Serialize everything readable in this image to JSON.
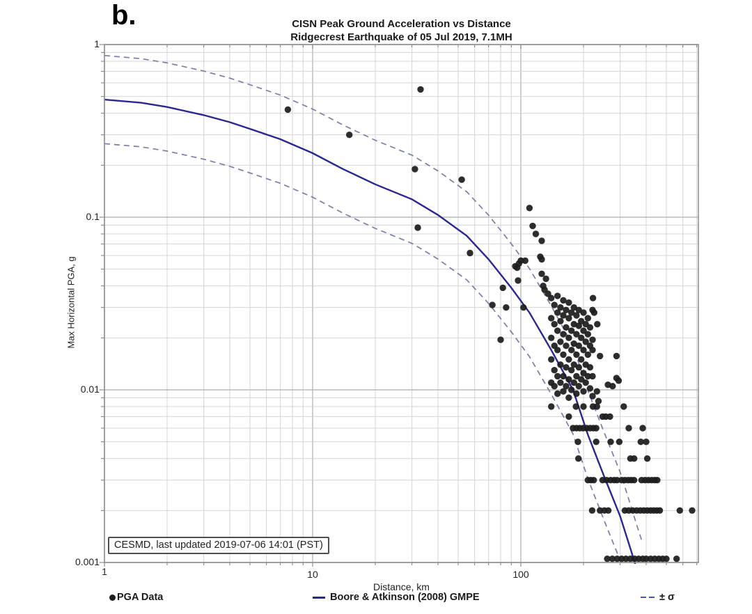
{
  "panel_label": "b.",
  "title": {
    "line1": "CISN Peak Ground Acceleration vs Distance",
    "line2": "Ridgecrest Earthquake of 05 Jul 2019, 7.1MH"
  },
  "annotation": {
    "text": "CESMD, last updated 2019-07-06 14:01 (PST)"
  },
  "legend": {
    "items": [
      {
        "marker": "filled-dot",
        "label": "PGA Data"
      },
      {
        "marker": "solid-line",
        "label": "Boore & Atkinson (2008) GMPE"
      },
      {
        "marker": "dashed-line",
        "label": "± σ"
      }
    ]
  },
  "colors": {
    "background": "#ffffff",
    "point": "#1d1d1d",
    "gmpe_line": "#2b2791",
    "sigma_line": "#7a7ea8",
    "grid_minor": "#d4d4d4",
    "grid_major": "#b9b9b9",
    "plot_border": "#8f8f8f",
    "tick": "#777777"
  },
  "chart_data": {
    "type": "scatter",
    "title": "CISN Peak Ground Acceleration vs Distance — Ridgecrest Earthquake of 05 Jul 2019, 7.1MH",
    "xlabel": "Distance, km",
    "ylabel": "Max Horizontal PGA, g",
    "xscale": "log",
    "yscale": "log",
    "xlim": [
      1,
      713
    ],
    "ylim": [
      0.001,
      1
    ],
    "x_tick_labels": [
      "1",
      "10",
      "100"
    ],
    "y_tick_labels": [
      "1",
      "0.1",
      "0.01",
      "0.001"
    ],
    "grid": true,
    "legend_position": "bottom",
    "sigma_factor": 1.8,
    "gmpe_curve": [
      [
        1,
        0.48
      ],
      [
        1.5,
        0.46
      ],
      [
        2,
        0.435
      ],
      [
        3,
        0.39
      ],
      [
        4,
        0.355
      ],
      [
        5,
        0.325
      ],
      [
        7,
        0.283
      ],
      [
        10,
        0.235
      ],
      [
        14,
        0.19
      ],
      [
        20,
        0.155
      ],
      [
        30,
        0.127
      ],
      [
        40,
        0.103
      ],
      [
        55,
        0.078
      ],
      [
        70,
        0.057
      ],
      [
        90,
        0.039
      ],
      [
        110,
        0.028
      ],
      [
        140,
        0.017
      ],
      [
        178,
        0.01
      ],
      [
        210,
        0.0055
      ],
      [
        250,
        0.0032
      ],
      [
        300,
        0.00185
      ],
      [
        340,
        0.00115
      ],
      [
        360,
        0.00092
      ],
      [
        380,
        0.00075
      ]
    ],
    "pga_points": [
      [
        7.6,
        0.42
      ],
      [
        15,
        0.3
      ],
      [
        33,
        0.55
      ],
      [
        31,
        0.19
      ],
      [
        52,
        0.165
      ],
      [
        32,
        0.087
      ],
      [
        57,
        0.062
      ],
      [
        73,
        0.031
      ],
      [
        80,
        0.0195
      ],
      [
        82,
        0.039
      ],
      [
        85,
        0.03
      ],
      [
        94,
        0.052
      ],
      [
        96,
        0.051
      ],
      [
        97,
        0.043
      ],
      [
        98,
        0.054
      ],
      [
        100,
        0.056
      ],
      [
        103,
        0.03
      ],
      [
        105,
        0.056
      ],
      [
        110,
        0.113
      ],
      [
        114,
        0.089
      ],
      [
        118,
        0.08
      ],
      [
        126,
        0.073
      ],
      [
        124,
        0.059
      ],
      [
        126,
        0.057
      ],
      [
        126,
        0.047
      ],
      [
        128,
        0.04
      ],
      [
        130,
        0.038
      ],
      [
        132,
        0.044
      ],
      [
        135,
        0.036
      ],
      [
        222,
        0.034
      ],
      [
        221,
        0.029
      ],
      [
        225,
        0.028
      ],
      [
        233,
        0.024
      ],
      [
        221,
        0.0195
      ],
      [
        221,
        0.017
      ],
      [
        240,
        0.0157
      ],
      [
        288,
        0.0157
      ],
      [
        221,
        0.012
      ],
      [
        288,
        0.0117
      ],
      [
        295,
        0.0113
      ],
      [
        262,
        0.0107
      ],
      [
        276,
        0.0105
      ],
      [
        232,
        0.0098
      ],
      [
        221,
        0.0092
      ],
      [
        236,
        0.0086
      ],
      [
        140,
        0.034
      ],
      [
        140,
        0.026
      ],
      [
        140,
        0.02
      ],
      [
        140,
        0.015
      ],
      [
        140,
        0.011
      ],
      [
        145,
        0.031
      ],
      [
        145,
        0.024
      ],
      [
        145,
        0.018
      ],
      [
        145,
        0.013
      ],
      [
        145,
        0.0105
      ],
      [
        150,
        0.035
      ],
      [
        150,
        0.028
      ],
      [
        150,
        0.022
      ],
      [
        150,
        0.017
      ],
      [
        150,
        0.012
      ],
      [
        150,
        0.0095
      ],
      [
        155,
        0.03
      ],
      [
        155,
        0.025
      ],
      [
        155,
        0.019
      ],
      [
        155,
        0.014
      ],
      [
        155,
        0.011
      ],
      [
        160,
        0.033
      ],
      [
        160,
        0.027
      ],
      [
        160,
        0.021
      ],
      [
        160,
        0.016
      ],
      [
        160,
        0.012
      ],
      [
        160,
        0.0098
      ],
      [
        165,
        0.029
      ],
      [
        165,
        0.023
      ],
      [
        165,
        0.018
      ],
      [
        165,
        0.0135
      ],
      [
        165,
        0.0105
      ],
      [
        170,
        0.032
      ],
      [
        170,
        0.026
      ],
      [
        170,
        0.02
      ],
      [
        170,
        0.015
      ],
      [
        170,
        0.0115
      ],
      [
        170,
        0.009
      ],
      [
        175,
        0.028
      ],
      [
        175,
        0.022
      ],
      [
        175,
        0.017
      ],
      [
        175,
        0.013
      ],
      [
        175,
        0.01
      ],
      [
        180,
        0.03
      ],
      [
        180,
        0.024
      ],
      [
        180,
        0.0185
      ],
      [
        180,
        0.014
      ],
      [
        180,
        0.011
      ],
      [
        185,
        0.027
      ],
      [
        185,
        0.021
      ],
      [
        185,
        0.016
      ],
      [
        185,
        0.012
      ],
      [
        185,
        0.0095
      ],
      [
        190,
        0.029
      ],
      [
        190,
        0.0235
      ],
      [
        190,
        0.018
      ],
      [
        190,
        0.0135
      ],
      [
        190,
        0.0105
      ],
      [
        195,
        0.025
      ],
      [
        195,
        0.02
      ],
      [
        195,
        0.015
      ],
      [
        195,
        0.0115
      ],
      [
        200,
        0.028
      ],
      [
        200,
        0.022
      ],
      [
        200,
        0.017
      ],
      [
        200,
        0.0125
      ],
      [
        200,
        0.0098
      ],
      [
        205,
        0.024
      ],
      [
        205,
        0.019
      ],
      [
        205,
        0.014
      ],
      [
        205,
        0.011
      ],
      [
        210,
        0.026
      ],
      [
        210,
        0.021
      ],
      [
        210,
        0.016
      ],
      [
        210,
        0.012
      ],
      [
        215,
        0.023
      ],
      [
        215,
        0.018
      ],
      [
        215,
        0.0135
      ],
      [
        215,
        0.0102
      ],
      [
        140,
        0.008
      ],
      [
        184,
        0.008
      ],
      [
        200,
        0.008
      ],
      [
        222,
        0.008
      ],
      [
        232,
        0.008
      ],
      [
        312,
        0.008
      ],
      [
        170,
        0.007
      ],
      [
        247,
        0.007
      ],
      [
        256,
        0.007
      ],
      [
        268,
        0.007
      ],
      [
        178,
        0.006
      ],
      [
        185,
        0.006
      ],
      [
        192,
        0.006
      ],
      [
        199,
        0.006
      ],
      [
        207,
        0.006
      ],
      [
        215,
        0.006
      ],
      [
        223,
        0.006
      ],
      [
        230,
        0.006
      ],
      [
        330,
        0.006
      ],
      [
        385,
        0.006
      ],
      [
        188,
        0.005
      ],
      [
        230,
        0.005
      ],
      [
        270,
        0.005
      ],
      [
        297,
        0.005
      ],
      [
        377,
        0.005
      ],
      [
        400,
        0.005
      ],
      [
        189,
        0.004
      ],
      [
        336,
        0.004
      ],
      [
        350,
        0.004
      ],
      [
        405,
        0.004
      ],
      [
        210,
        0.003
      ],
      [
        217,
        0.003
      ],
      [
        224,
        0.003
      ],
      [
        247,
        0.003
      ],
      [
        258,
        0.003
      ],
      [
        270,
        0.003
      ],
      [
        281,
        0.003
      ],
      [
        290,
        0.003
      ],
      [
        305,
        0.003
      ],
      [
        316,
        0.003
      ],
      [
        328,
        0.003
      ],
      [
        339,
        0.003
      ],
      [
        350,
        0.003
      ],
      [
        380,
        0.003
      ],
      [
        395,
        0.003
      ],
      [
        410,
        0.003
      ],
      [
        425,
        0.003
      ],
      [
        440,
        0.003
      ],
      [
        452,
        0.003
      ],
      [
        220,
        0.002
      ],
      [
        240,
        0.002
      ],
      [
        252,
        0.002
      ],
      [
        263,
        0.002
      ],
      [
        316,
        0.002
      ],
      [
        330,
        0.002
      ],
      [
        345,
        0.002
      ],
      [
        360,
        0.002
      ],
      [
        375,
        0.002
      ],
      [
        390,
        0.002
      ],
      [
        405,
        0.002
      ],
      [
        420,
        0.002
      ],
      [
        435,
        0.002
      ],
      [
        450,
        0.002
      ],
      [
        465,
        0.002
      ],
      [
        580,
        0.002
      ],
      [
        665,
        0.002
      ],
      [
        260,
        0.00105
      ],
      [
        275,
        0.00105
      ],
      [
        290,
        0.00105
      ],
      [
        305,
        0.00105
      ],
      [
        320,
        0.00105
      ],
      [
        336,
        0.00105
      ],
      [
        352,
        0.00105
      ],
      [
        368,
        0.00105
      ],
      [
        385,
        0.00105
      ],
      [
        400,
        0.00105
      ],
      [
        420,
        0.00105
      ],
      [
        440,
        0.00105
      ],
      [
        460,
        0.00105
      ],
      [
        480,
        0.00105
      ],
      [
        500,
        0.00105
      ],
      [
        560,
        0.00105
      ]
    ]
  }
}
